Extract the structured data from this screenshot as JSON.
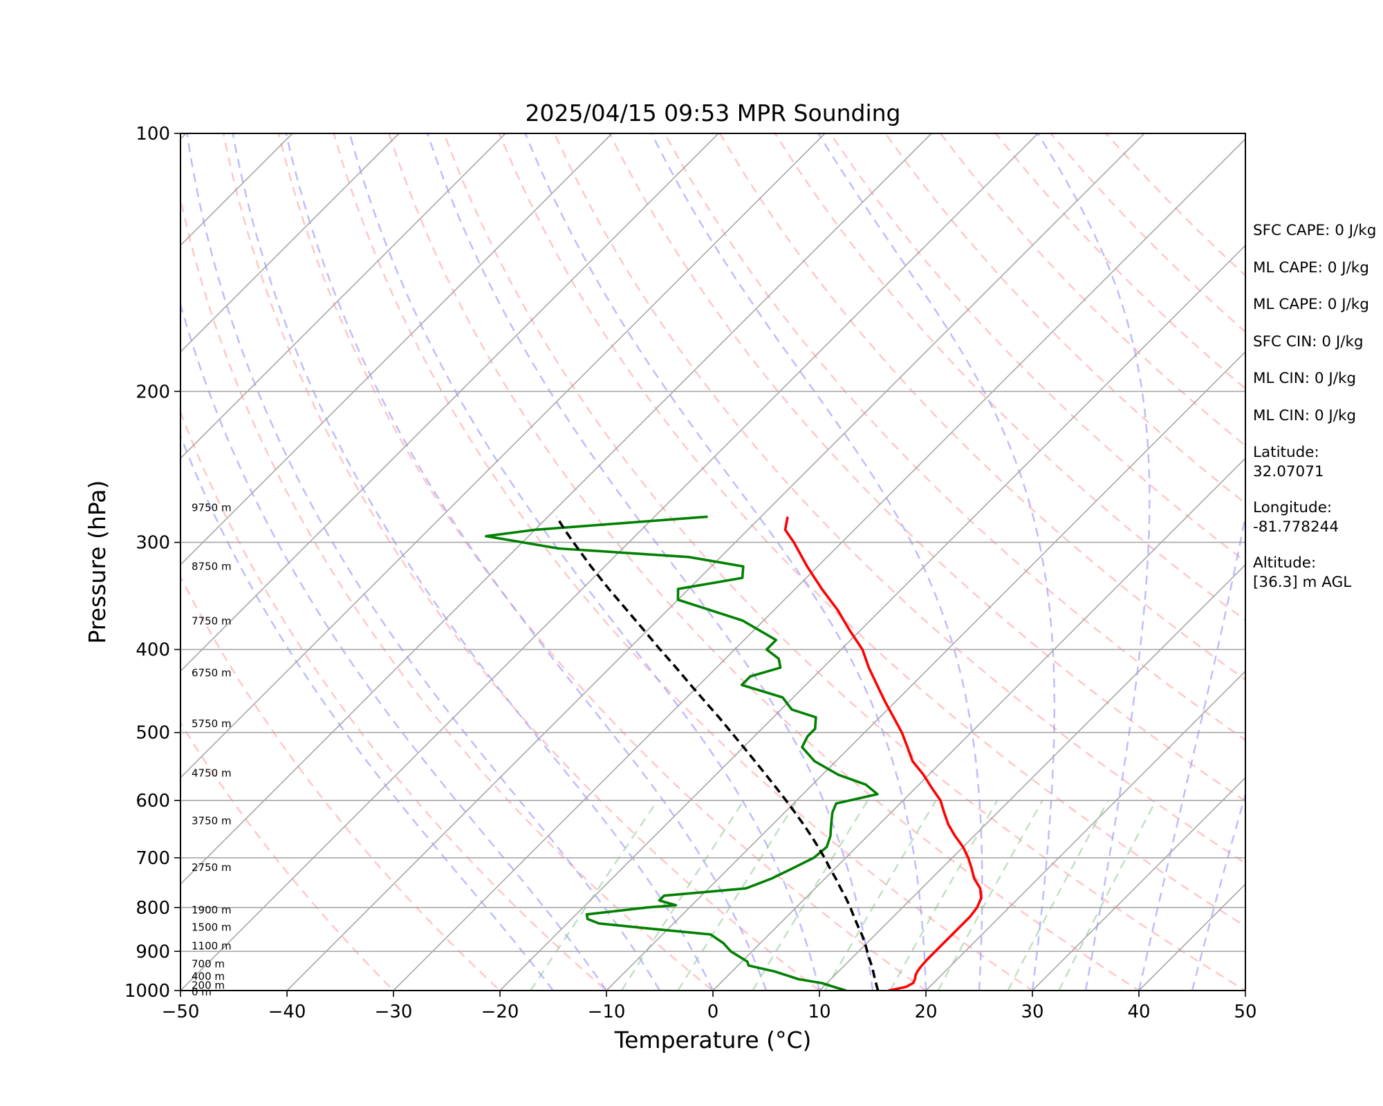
{
  "chart_data": {
    "type": "line",
    "subtype": "skew-t log-p",
    "title": "2025/04/15 09:53 MPR Sounding",
    "xlabel": "Temperature (°C)",
    "ylabel": "Pressure (hPa)",
    "xlim": [
      -50,
      50
    ],
    "ylim": [
      1000,
      100
    ],
    "y_scale": "log",
    "x_ticks": [
      "−50",
      "−40",
      "−30",
      "−20",
      "−10",
      "0",
      "10",
      "20",
      "30",
      "40",
      "50"
    ],
    "y_ticks": [
      100,
      200,
      300,
      400,
      500,
      600,
      700,
      800,
      900,
      1000
    ],
    "grid": true,
    "series": [
      {
        "role": "temperature",
        "color": "#ff0000",
        "points": [
          [
            1000,
            16.5
          ],
          [
            990,
            17.8
          ],
          [
            980,
            18.1
          ],
          [
            970,
            17.9
          ],
          [
            960,
            17.6
          ],
          [
            950,
            17.4
          ],
          [
            940,
            17.3
          ],
          [
            920,
            17.2
          ],
          [
            900,
            17.2
          ],
          [
            880,
            17.2
          ],
          [
            860,
            17.2
          ],
          [
            840,
            17.2
          ],
          [
            820,
            17.2
          ],
          [
            800,
            17.0
          ],
          [
            780,
            16.5
          ],
          [
            760,
            15.5
          ],
          [
            740,
            14.0
          ],
          [
            720,
            12.8
          ],
          [
            700,
            11.5
          ],
          [
            680,
            10.0
          ],
          [
            660,
            8.2
          ],
          [
            640,
            6.5
          ],
          [
            620,
            5.0
          ],
          [
            600,
            3.5
          ],
          [
            580,
            1.5
          ],
          [
            560,
            -0.5
          ],
          [
            540,
            -2.8
          ],
          [
            520,
            -4.6
          ],
          [
            500,
            -6.5
          ],
          [
            480,
            -8.7
          ],
          [
            460,
            -11.0
          ],
          [
            440,
            -13.3
          ],
          [
            420,
            -15.7
          ],
          [
            400,
            -18.0
          ],
          [
            380,
            -21.0
          ],
          [
            360,
            -24.0
          ],
          [
            340,
            -27.5
          ],
          [
            320,
            -31.0
          ],
          [
            300,
            -34.5
          ],
          [
            290,
            -36.5
          ],
          [
            280,
            -37.5
          ]
        ]
      },
      {
        "role": "dewpoint",
        "color": "#008000",
        "points": [
          [
            1000,
            12.5
          ],
          [
            990,
            11.0
          ],
          [
            980,
            9.5
          ],
          [
            970,
            7.0
          ],
          [
            950,
            4.0
          ],
          [
            935,
            1.0
          ],
          [
            925,
            0.5
          ],
          [
            910,
            -1.0
          ],
          [
            900,
            -2.0
          ],
          [
            880,
            -3.5
          ],
          [
            860,
            -5.5
          ],
          [
            845,
            -12.5
          ],
          [
            835,
            -17.0
          ],
          [
            825,
            -18.5
          ],
          [
            815,
            -19.0
          ],
          [
            800,
            -14.0
          ],
          [
            795,
            -11.5
          ],
          [
            785,
            -13.5
          ],
          [
            775,
            -13.5
          ],
          [
            760,
            -6.5
          ],
          [
            740,
            -5.0
          ],
          [
            720,
            -4.0
          ],
          [
            700,
            -3.0
          ],
          [
            680,
            -2.8
          ],
          [
            660,
            -3.5
          ],
          [
            640,
            -4.5
          ],
          [
            620,
            -5.5
          ],
          [
            605,
            -6.0
          ],
          [
            590,
            -3.0
          ],
          [
            575,
            -5.0
          ],
          [
            560,
            -8.5
          ],
          [
            540,
            -12.0
          ],
          [
            520,
            -14.5
          ],
          [
            505,
            -15.0
          ],
          [
            495,
            -15.0
          ],
          [
            480,
            -16.0
          ],
          [
            470,
            -19.0
          ],
          [
            455,
            -21.0
          ],
          [
            440,
            -26.0
          ],
          [
            430,
            -26.0
          ],
          [
            420,
            -24.0
          ],
          [
            410,
            -25.0
          ],
          [
            400,
            -27.0
          ],
          [
            390,
            -27.0
          ],
          [
            370,
            -32.0
          ],
          [
            350,
            -40.0
          ],
          [
            340,
            -41.0
          ],
          [
            330,
            -36.0
          ],
          [
            320,
            -37.0
          ],
          [
            312,
            -43.0
          ],
          [
            305,
            -56.0
          ],
          [
            295,
            -64.0
          ],
          [
            290,
            -60.0
          ],
          [
            280,
            -45.0
          ]
        ]
      },
      {
        "role": "parcel",
        "color": "#000000",
        "dashed": true,
        "points": [
          [
            1000,
            15.5
          ],
          [
            980,
            14.6
          ],
          [
            960,
            13.7
          ],
          [
            940,
            12.8
          ],
          [
            920,
            11.8
          ],
          [
            900,
            10.8
          ],
          [
            880,
            9.8
          ],
          [
            860,
            8.7
          ],
          [
            840,
            7.5
          ],
          [
            820,
            6.3
          ],
          [
            800,
            5.1
          ],
          [
            780,
            3.8
          ],
          [
            760,
            2.4
          ],
          [
            740,
            1.0
          ],
          [
            720,
            -0.5
          ],
          [
            700,
            -2.0
          ],
          [
            680,
            -3.6
          ],
          [
            660,
            -5.3
          ],
          [
            640,
            -7.1
          ],
          [
            620,
            -9.0
          ],
          [
            600,
            -11.0
          ],
          [
            580,
            -13.1
          ],
          [
            560,
            -15.3
          ],
          [
            540,
            -17.6
          ],
          [
            520,
            -20.0
          ],
          [
            500,
            -22.5
          ],
          [
            480,
            -25.1
          ],
          [
            460,
            -27.9
          ],
          [
            440,
            -30.8
          ],
          [
            420,
            -33.8
          ],
          [
            400,
            -37.0
          ],
          [
            380,
            -40.3
          ],
          [
            360,
            -43.8
          ],
          [
            340,
            -47.5
          ],
          [
            320,
            -51.3
          ],
          [
            300,
            -55.2
          ],
          [
            290,
            -57.2
          ],
          [
            280,
            -59.2
          ]
        ]
      }
    ],
    "height_labels": [
      "0 m",
      "200 m",
      "400 m",
      "700 m",
      "1100 m",
      "1500 m",
      "1900 m",
      "2750 m",
      "3750 m",
      "4750 m",
      "5750 m",
      "6750 m",
      "7750 m",
      "8750 m",
      "9750 m"
    ],
    "height_label_pressures": [
      1013,
      995,
      972,
      940,
      895,
      852,
      813,
      725,
      640,
      563,
      493,
      430,
      374,
      323,
      276
    ],
    "colors": {
      "isotherm": "#a6a6a6",
      "dry_adiabat": "#ff9999",
      "moist_adiabat": "#9999ff",
      "mixing_ratio": "#99cc99"
    }
  },
  "stats": [
    {
      "key": "sfc_cape",
      "lines": [
        "SFC CAPE: 0 J/kg"
      ]
    },
    {
      "key": "ml_cape_1",
      "lines": [
        "ML CAPE: 0 J/kg"
      ]
    },
    {
      "key": "ml_cape_2",
      "lines": [
        "ML CAPE: 0 J/kg"
      ]
    },
    {
      "key": "sfc_cin",
      "lines": [
        "SFC CIN: 0 J/kg"
      ]
    },
    {
      "key": "ml_cin_1",
      "lines": [
        "ML CIN: 0 J/kg"
      ]
    },
    {
      "key": "ml_cin_2",
      "lines": [
        "ML CIN: 0 J/kg"
      ]
    },
    {
      "key": "latitude",
      "lines": [
        "Latitude:",
        "32.07071"
      ]
    },
    {
      "key": "longitude",
      "lines": [
        "Longitude:",
        "-81.778244"
      ]
    },
    {
      "key": "altitude",
      "lines": [
        "Altitude:",
        "[36.3] m AGL"
      ]
    }
  ]
}
